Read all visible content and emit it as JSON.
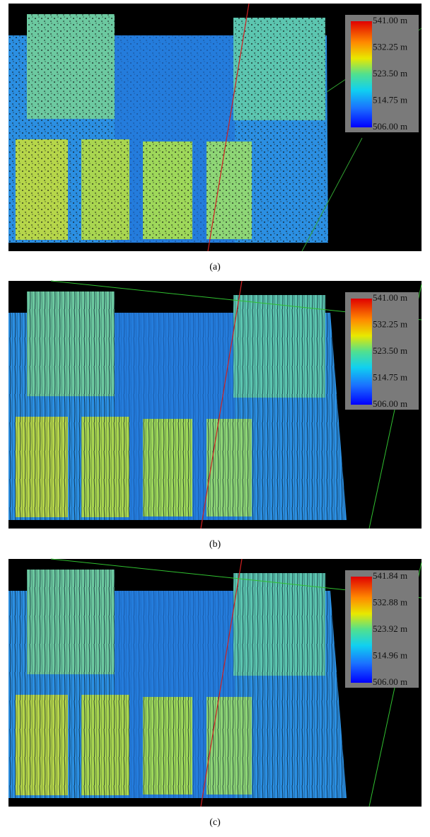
{
  "panels": [
    {
      "caption": "(a)",
      "colorbar": {
        "labels": [
          "541.00 m",
          "532.25 m",
          "523.50 m",
          "514.75 m",
          "506.00 m"
        ]
      }
    },
    {
      "caption": "(b)",
      "colorbar": {
        "labels": [
          "541.00 m",
          "532.25 m",
          "523.50 m",
          "514.75 m",
          "506.00 m"
        ]
      }
    },
    {
      "caption": "(c)",
      "colorbar": {
        "labels": [
          "541.84 m",
          "532.88 m",
          "523.92 m",
          "514.96 m",
          "506.00 m"
        ]
      }
    }
  ]
}
